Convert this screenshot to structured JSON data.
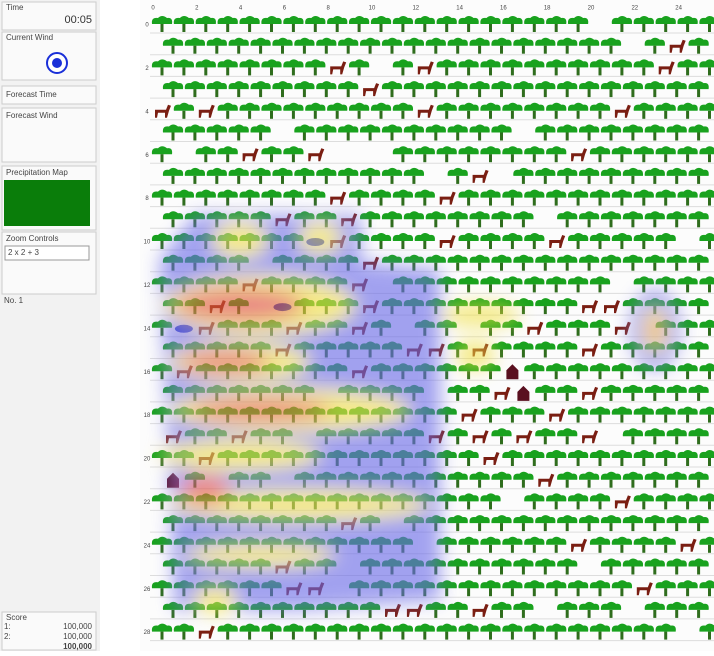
{
  "panel": {
    "time_label": "Time",
    "time": "00:05",
    "current_wind": "Current Wind",
    "forecast_time": "Forecast Time",
    "forecast_wind": "Forecast Wind",
    "precipitation_map": "Precipitation Map",
    "zoom_controls": "Zoom Controls",
    "zoom_value": "2 x 2 + 3",
    "id_label": "No. 1"
  },
  "score": {
    "title": "Score",
    "rows": [
      {
        "label": "1:",
        "value": "100,000"
      },
      {
        "label": "2:",
        "value": "100,000"
      }
    ],
    "total": "100,000"
  },
  "map": {
    "column_labels": [
      0,
      2,
      4,
      6,
      8,
      10,
      12,
      14,
      16,
      18,
      20,
      22,
      24
    ],
    "row_labels": [
      0,
      2,
      4,
      6,
      8,
      10,
      12,
      14,
      16,
      18,
      20,
      22,
      24,
      26,
      28
    ]
  }
}
